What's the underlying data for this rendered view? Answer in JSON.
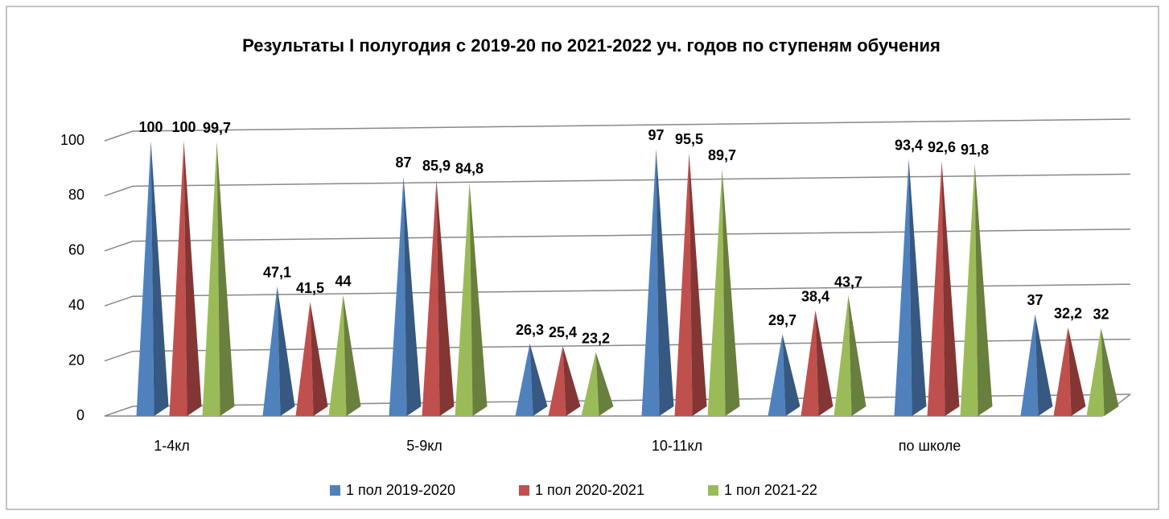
{
  "chart_data": {
    "type": "pyramid",
    "title": "Результаты I полугодия с 2019-20 по 2021-2022 уч. годов  по ступеням обучения",
    "categories": [
      "1-4кл",
      null,
      "5-9кл",
      null,
      "10-11кл",
      null,
      "по школе",
      null
    ],
    "series": [
      {
        "name": "1 пол 2019-2020",
        "color": "#4f81bd",
        "values": [
          100,
          47.1,
          87,
          26.3,
          97,
          29.7,
          93.4,
          37
        ],
        "value_labels": [
          "100",
          "47,1",
          "87",
          "26,3",
          "97",
          "29,7",
          "93,4",
          "37"
        ]
      },
      {
        "name": "1 пол 2020-2021",
        "color": "#c0504d",
        "values": [
          100,
          41.5,
          85.9,
          25.4,
          95.5,
          38.4,
          92.6,
          32.2
        ],
        "value_labels": [
          "100",
          "41,5",
          "85,9",
          "25,4",
          "95,5",
          "38,4",
          "92,6",
          "32,2"
        ]
      },
      {
        "name": "1 пол 2021-22",
        "color": "#9bbb59",
        "values": [
          99.7,
          44,
          84.8,
          23.2,
          89.7,
          43.7,
          91.8,
          32
        ],
        "value_labels": [
          "99,7",
          "44",
          "84,8",
          "23,2",
          "89,7",
          "43,7",
          "91,8",
          "32"
        ]
      }
    ],
    "ylim": [
      0,
      100
    ],
    "yticks": [
      0,
      20,
      40,
      60,
      80,
      100
    ],
    "grid": true,
    "legend": "bottom"
  }
}
